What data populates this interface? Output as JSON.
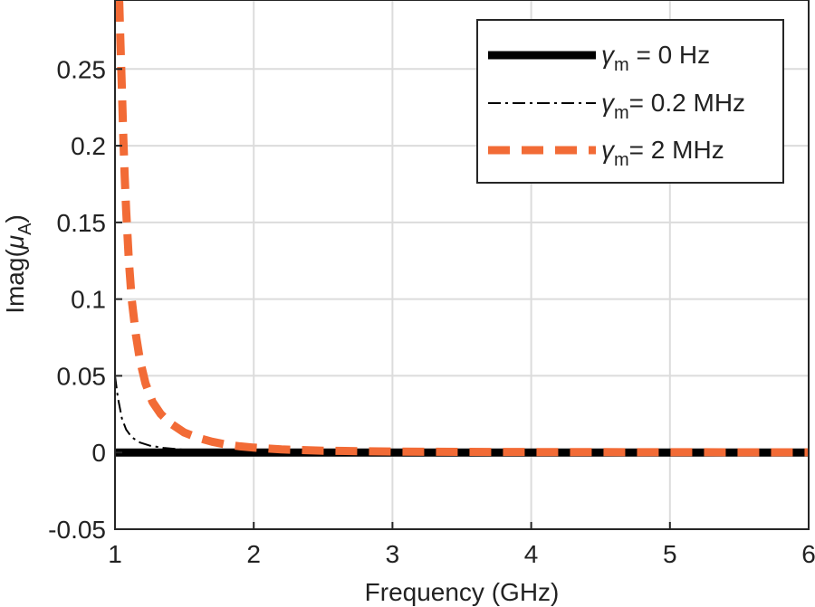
{
  "chart_data": {
    "type": "line",
    "title": "",
    "xlabel": "Frequency (GHz)",
    "ylabel_main": "Imag(",
    "ylabel_symbol": "μ",
    "ylabel_sub": "A",
    "ylabel_close": ")",
    "xlim": [
      1,
      6
    ],
    "ylim": [
      -0.05,
      0.295
    ],
    "xticks": [
      1,
      2,
      3,
      4,
      5,
      6
    ],
    "xtick_labels": [
      "1",
      "2",
      "3",
      "4",
      "5",
      "6"
    ],
    "yticks": [
      -0.05,
      0,
      0.05,
      0.1,
      0.15,
      0.2,
      0.25
    ],
    "ytick_labels": [
      "-0.05",
      "0",
      "0.05",
      "0.1",
      "0.15",
      "0.2",
      "0.25"
    ],
    "grid": true,
    "legend_position": "top-right",
    "series": [
      {
        "legend_symbol": "γ",
        "legend_sub": "m",
        "legend_text": " = 0 Hz",
        "color": "#000000",
        "style": "solid",
        "x": [
          1,
          6
        ],
        "y": [
          0,
          0
        ]
      },
      {
        "legend_symbol": "γ",
        "legend_sub": "m",
        "legend_text": "= 0.2 MHz",
        "color": "#000000",
        "style": "dashdot",
        "x": [
          1.0,
          1.02,
          1.05,
          1.08,
          1.12,
          1.18,
          1.25,
          1.35,
          1.5,
          1.7,
          2.0,
          3.0,
          4.0,
          5.0,
          6.0
        ],
        "y": [
          0.05,
          0.036,
          0.022,
          0.015,
          0.01,
          0.0065,
          0.0045,
          0.003,
          0.0018,
          0.0011,
          0.0006,
          0.0002,
          0.0001,
          5e-05,
          3e-05
        ]
      },
      {
        "legend_symbol": "γ",
        "legend_sub": "m",
        "legend_text": "= 2 MHz",
        "color": "#f26b36",
        "style": "dashed",
        "x": [
          1.03,
          1.04,
          1.05,
          1.06,
          1.07,
          1.08,
          1.1,
          1.12,
          1.15,
          1.18,
          1.22,
          1.27,
          1.33,
          1.4,
          1.5,
          1.6,
          1.7,
          1.8,
          1.9,
          2.0,
          2.2,
          2.5,
          3.0,
          3.5,
          4.0,
          5.0,
          6.0
        ],
        "y": [
          0.295,
          0.265,
          0.235,
          0.205,
          0.18,
          0.158,
          0.125,
          0.1,
          0.077,
          0.06,
          0.045,
          0.033,
          0.025,
          0.019,
          0.013,
          0.0095,
          0.007,
          0.0052,
          0.004,
          0.0032,
          0.002,
          0.0012,
          0.0006,
          0.0004,
          0.0003,
          0.0002,
          0.0001
        ]
      }
    ]
  }
}
